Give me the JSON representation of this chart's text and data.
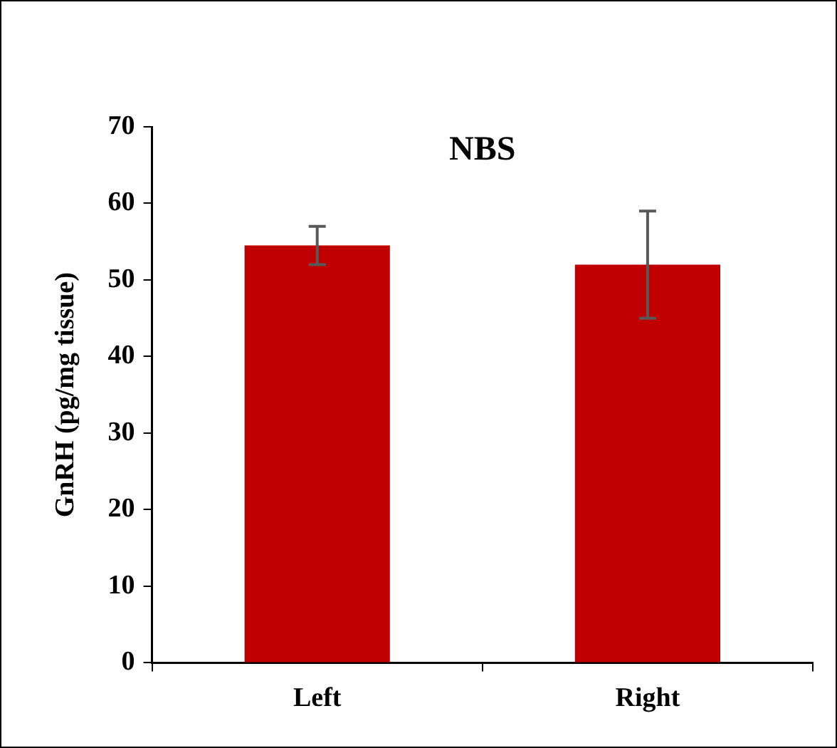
{
  "chart_data": {
    "type": "bar",
    "title": "NBS",
    "ylabel": "GnRH (pg/mg tissue)",
    "categories": [
      "Left",
      "Right"
    ],
    "series": [
      {
        "color": "#c00000",
        "values": [
          54.5,
          52
        ],
        "errors": [
          2.5,
          7
        ]
      }
    ],
    "ylim": [
      0,
      70
    ],
    "yticks": [
      0,
      10,
      20,
      30,
      40,
      50,
      60,
      70
    ],
    "legend": false
  }
}
